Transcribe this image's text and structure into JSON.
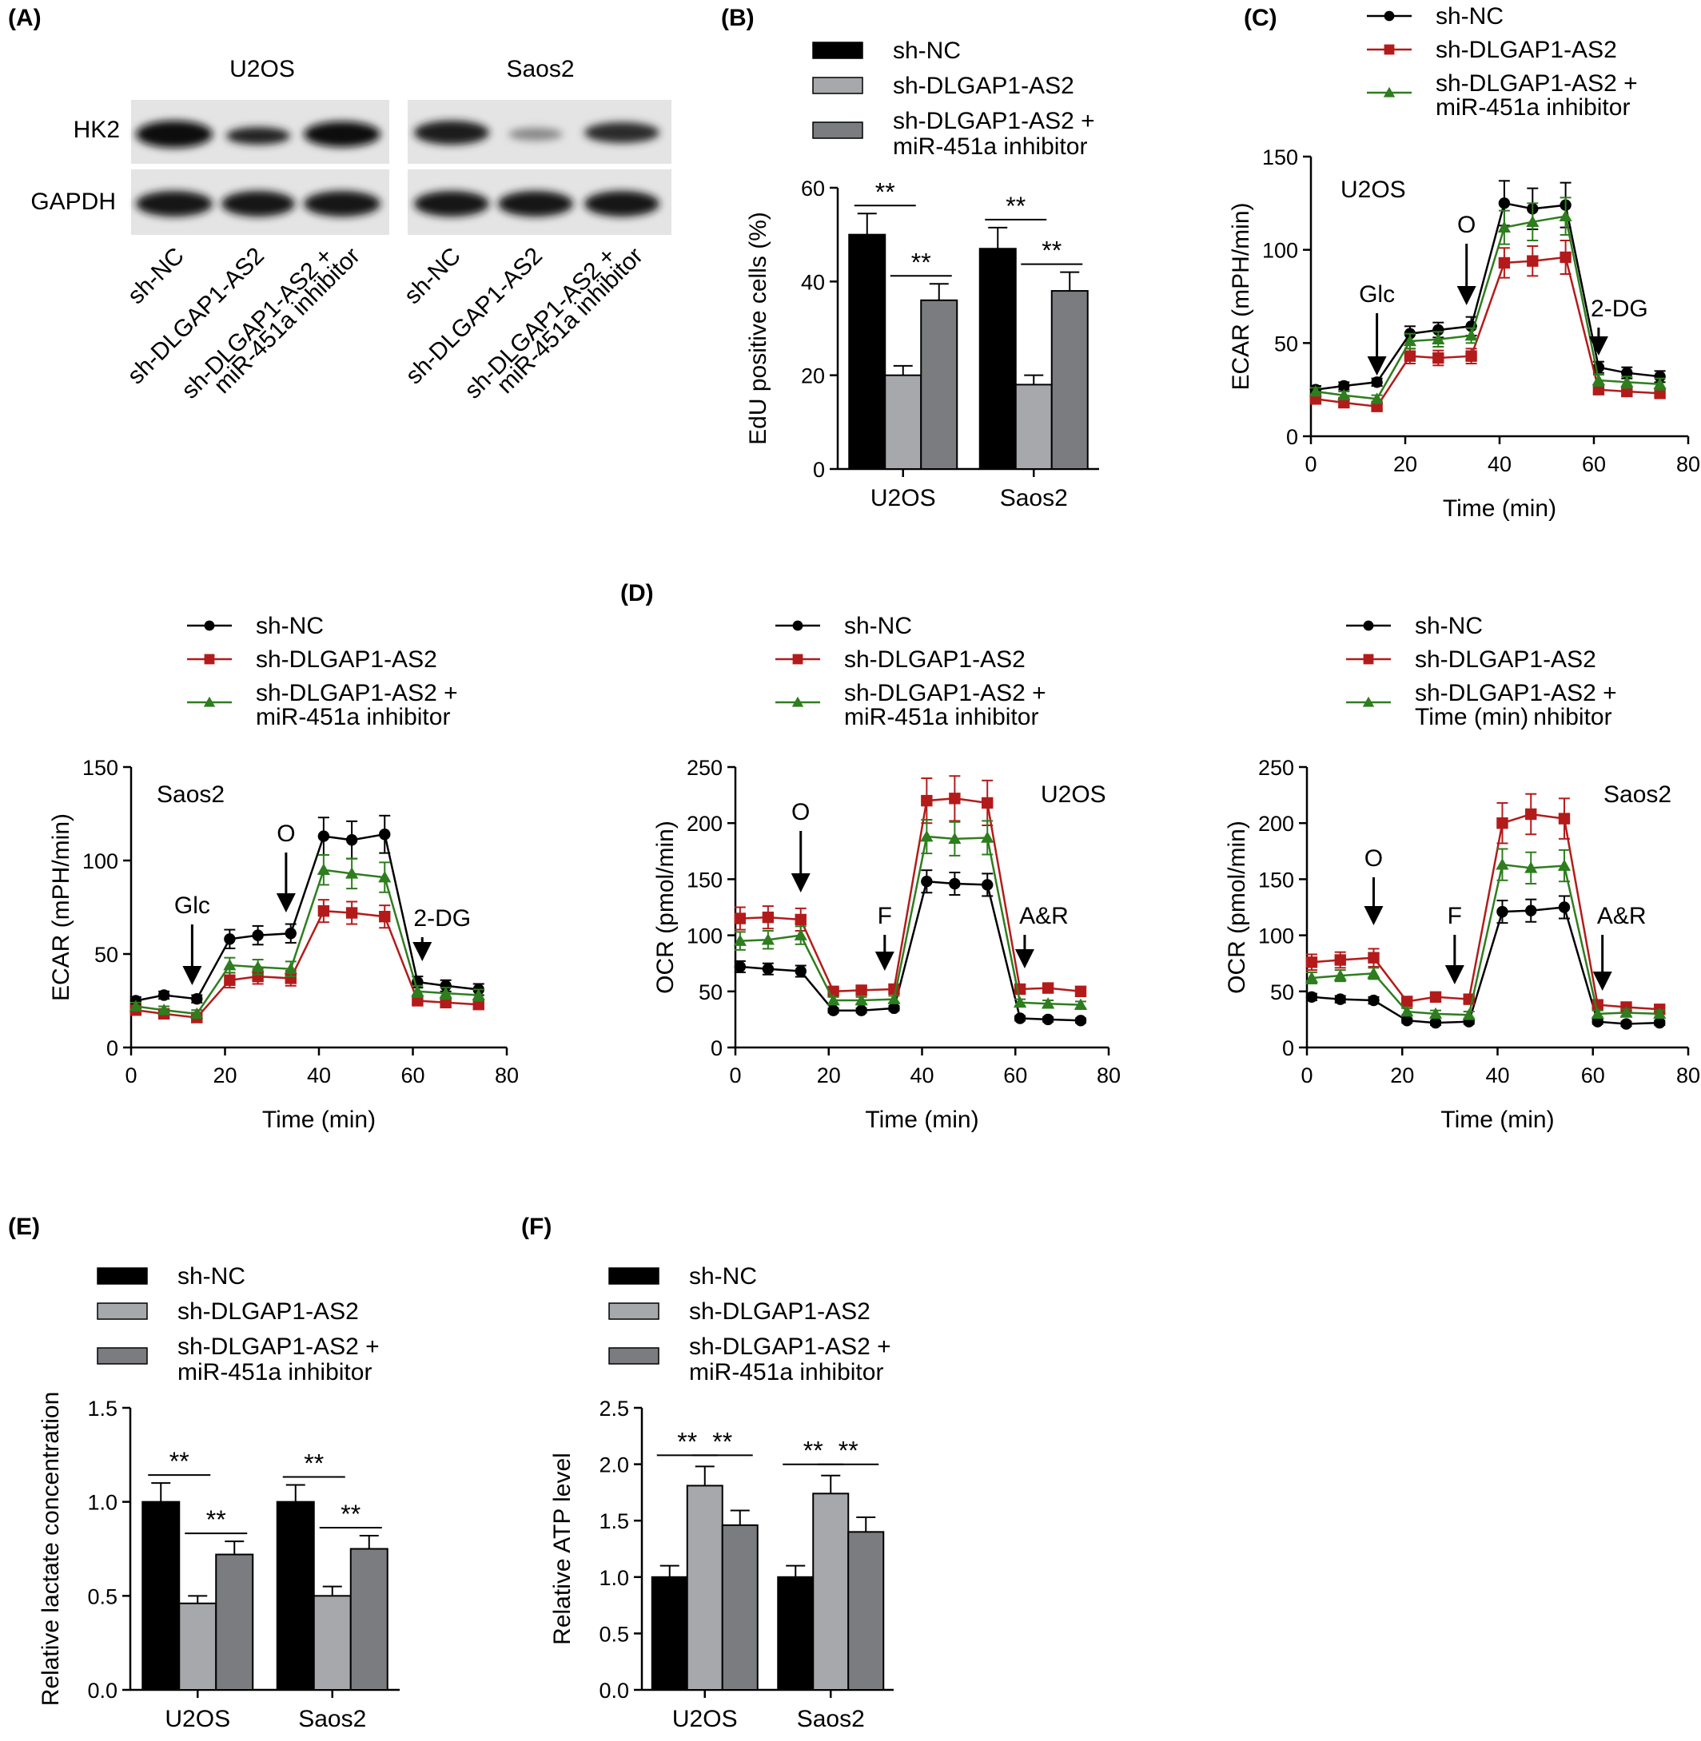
{
  "colors": {
    "black": "#000000",
    "red": "#b31b1b",
    "green": "#2e7d1e",
    "gray_light": "#a7a8ab",
    "gray_dark": "#7b7c7f",
    "blot_bg": "#e6e6e6"
  },
  "legend_labels": {
    "nc": "sh-NC",
    "kd": "sh-DLGAP1-AS2",
    "rescue_1": "sh-DLGAP1-AS2 +",
    "rescue_2": "miR-451a inhibitor",
    "rescue_2_saos_ocr": "Time (min) nhibitor"
  },
  "blot": {
    "panel_label": "(A)",
    "cell_lines": [
      "U2OS",
      "Saos2"
    ],
    "proteins": [
      "HK2",
      "GAPDH"
    ],
    "lanes": [
      "sh-NC",
      "sh-DLGAP1-AS2",
      "sh-DLGAP1-AS2 +",
      "miR-451a inhibitor"
    ]
  },
  "markers": {
    "glc": "Glc",
    "oligo": "O",
    "twodg": "2-DG",
    "fccp": "F",
    "ar": "A&R",
    "sig": "**"
  },
  "chart_data": [
    {
      "id": "B",
      "panel_label": "(B)",
      "type": "bar",
      "categories": [
        "U2OS",
        "Saos2"
      ],
      "series": [
        {
          "name": "sh-NC",
          "values": [
            50,
            47
          ],
          "errors": [
            4.5,
            4.5
          ]
        },
        {
          "name": "sh-DLGAP1-AS2",
          "values": [
            20,
            18
          ],
          "errors": [
            2,
            2
          ]
        },
        {
          "name": "sh-DLGAP1-AS2 + miR-451a inhibitor",
          "values": [
            36,
            38
          ],
          "errors": [
            3.5,
            4
          ]
        }
      ],
      "ylabel": "EdU positive cells (%)",
      "ylim": [
        0,
        60
      ],
      "yticks": [
        "0",
        "20",
        "40",
        "60"
      ]
    },
    {
      "id": "C",
      "panel_label": "(C)",
      "type": "line",
      "annotation": "U2OS",
      "x": [
        1,
        7,
        14,
        21,
        27,
        34,
        41,
        47,
        54,
        61,
        67,
        74
      ],
      "series": [
        {
          "name": "sh-NC",
          "values": [
            25,
            27,
            29,
            55,
            57,
            59,
            125,
            122,
            124,
            37,
            34,
            32
          ],
          "errors": [
            2,
            2,
            2,
            4,
            4,
            5,
            12,
            11,
            12,
            3,
            3,
            3
          ]
        },
        {
          "name": "sh-DLGAP1-AS2",
          "values": [
            20,
            18,
            16,
            43,
            42,
            43,
            93,
            94,
            96,
            25,
            24,
            23
          ],
          "errors": [
            2,
            2,
            2,
            4,
            4,
            4,
            8,
            8,
            9,
            2,
            2,
            2
          ]
        },
        {
          "name": "sh-DLGAP1-AS2 + miR-451a inhibitor",
          "values": [
            24,
            22,
            20,
            51,
            52,
            54,
            112,
            115,
            118,
            30,
            29,
            28
          ],
          "errors": [
            2,
            2,
            2,
            4,
            4,
            4,
            9,
            10,
            10,
            3,
            3,
            3
          ]
        }
      ],
      "xlabel": "Time (min)",
      "ylabel": "ECAR (mPH/min)",
      "xlim": [
        0,
        80
      ],
      "ylim": [
        0,
        150
      ],
      "xticks": [
        "0",
        "20",
        "40",
        "60",
        "80"
      ],
      "yticks": [
        "0",
        "50",
        "100",
        "150"
      ]
    },
    {
      "id": "ECAR_Saos2",
      "type": "line",
      "annotation": "Saos2",
      "x": [
        1,
        7,
        14,
        21,
        27,
        34,
        41,
        47,
        54,
        61,
        67,
        74
      ],
      "series": [
        {
          "name": "sh-NC",
          "values": [
            25,
            28,
            26,
            58,
            60,
            61,
            113,
            111,
            114,
            35,
            33,
            31
          ],
          "errors": [
            2,
            2,
            2,
            5,
            5,
            5,
            10,
            10,
            10,
            3,
            3,
            3
          ]
        },
        {
          "name": "sh-DLGAP1-AS2",
          "values": [
            20,
            18,
            16,
            36,
            38,
            37,
            73,
            72,
            70,
            25,
            24,
            23
          ],
          "errors": [
            2,
            2,
            2,
            4,
            4,
            4,
            6,
            6,
            6,
            2,
            2,
            2
          ]
        },
        {
          "name": "sh-DLGAP1-AS2 + miR-451a inhibitor",
          "values": [
            22,
            20,
            18,
            44,
            43,
            42,
            95,
            93,
            91,
            30,
            29,
            28
          ],
          "errors": [
            2,
            2,
            2,
            4,
            4,
            4,
            8,
            8,
            8,
            3,
            3,
            3
          ]
        }
      ],
      "xlabel": "Time (min)",
      "ylabel": "ECAR (mPH/min)",
      "xlim": [
        0,
        80
      ],
      "ylim": [
        0,
        150
      ],
      "xticks": [
        "0",
        "20",
        "40",
        "60",
        "80"
      ],
      "yticks": [
        "0",
        "50",
        "100",
        "150"
      ]
    },
    {
      "id": "D_U2OS",
      "panel_label": "(D)",
      "type": "line",
      "annotation": "U2OS",
      "x": [
        1,
        7,
        14,
        21,
        27,
        34,
        41,
        47,
        54,
        61,
        67,
        74
      ],
      "series": [
        {
          "name": "sh-NC",
          "values": [
            72,
            70,
            68,
            33,
            33,
            35,
            148,
            146,
            145,
            26,
            25,
            24
          ],
          "errors": [
            5,
            5,
            5,
            2,
            2,
            2,
            10,
            10,
            10,
            2,
            2,
            2
          ]
        },
        {
          "name": "sh-DLGAP1-AS2",
          "values": [
            115,
            116,
            114,
            50,
            51,
            52,
            220,
            222,
            218,
            52,
            53,
            50
          ],
          "errors": [
            10,
            10,
            10,
            3,
            3,
            3,
            20,
            20,
            20,
            4,
            4,
            4
          ]
        },
        {
          "name": "sh-DLGAP1-AS2 + miR-451a inhibitor",
          "values": [
            95,
            96,
            100,
            42,
            42,
            43,
            188,
            186,
            187,
            40,
            39,
            38
          ],
          "errors": [
            8,
            8,
            8,
            3,
            3,
            3,
            15,
            15,
            15,
            3,
            3,
            3
          ]
        }
      ],
      "xlabel": "Time (min)",
      "ylabel": "OCR (pmol/min)",
      "xlim": [
        0,
        80
      ],
      "ylim": [
        0,
        250
      ],
      "xticks": [
        "0",
        "20",
        "40",
        "60",
        "80"
      ],
      "yticks": [
        "0",
        "50",
        "100",
        "150",
        "200",
        "250"
      ]
    },
    {
      "id": "D_Saos2",
      "type": "line",
      "annotation": "Saos2",
      "x": [
        1,
        7,
        14,
        21,
        27,
        34,
        41,
        47,
        54,
        61,
        67,
        74
      ],
      "series": [
        {
          "name": "sh-NC",
          "values": [
            45,
            43,
            42,
            24,
            22,
            23,
            121,
            122,
            125,
            23,
            21,
            22
          ],
          "errors": [
            3,
            3,
            3,
            2,
            2,
            2,
            10,
            10,
            10,
            2,
            2,
            2
          ]
        },
        {
          "name": "sh-DLGAP1-AS2",
          "values": [
            76,
            78,
            80,
            41,
            45,
            43,
            200,
            208,
            204,
            38,
            36,
            34
          ],
          "errors": [
            7,
            7,
            8,
            3,
            3,
            3,
            18,
            18,
            18,
            3,
            3,
            3
          ]
        },
        {
          "name": "sh-DLGAP1-AS2 + miR-451a inhibitor",
          "values": [
            62,
            64,
            66,
            32,
            30,
            29,
            163,
            160,
            162,
            30,
            31,
            30
          ],
          "errors": [
            5,
            5,
            5,
            3,
            3,
            3,
            14,
            14,
            14,
            3,
            3,
            3
          ]
        }
      ],
      "xlabel": "Time (min)",
      "ylabel": "OCR (pmol/min)",
      "xlim": [
        0,
        80
      ],
      "ylim": [
        0,
        250
      ],
      "xticks": [
        "0",
        "20",
        "40",
        "60",
        "80"
      ],
      "yticks": [
        "0",
        "50",
        "100",
        "150",
        "200",
        "250"
      ]
    },
    {
      "id": "E",
      "panel_label": "(E)",
      "type": "bar",
      "categories": [
        "U2OS",
        "Saos2"
      ],
      "series": [
        {
          "name": "sh-NC",
          "values": [
            1.0,
            1.0
          ],
          "errors": [
            0.1,
            0.09
          ]
        },
        {
          "name": "sh-DLGAP1-AS2",
          "values": [
            0.46,
            0.5
          ],
          "errors": [
            0.04,
            0.05
          ]
        },
        {
          "name": "sh-DLGAP1-AS2 + miR-451a inhibitor",
          "values": [
            0.72,
            0.75
          ],
          "errors": [
            0.07,
            0.07
          ]
        }
      ],
      "ylabel": "Relative lactate concentration",
      "ylim": [
        0,
        1.5
      ],
      "yticks": [
        "0.0",
        "0.5",
        "1.0",
        "1.5"
      ]
    },
    {
      "id": "F",
      "panel_label": "(F)",
      "type": "bar",
      "categories": [
        "U2OS",
        "Saos2"
      ],
      "series": [
        {
          "name": "sh-NC",
          "values": [
            1.0,
            1.0
          ],
          "errors": [
            0.1,
            0.1
          ]
        },
        {
          "name": "sh-DLGAP1-AS2",
          "values": [
            1.81,
            1.74
          ],
          "errors": [
            0.17,
            0.16
          ]
        },
        {
          "name": "sh-DLGAP1-AS2 + miR-451a inhibitor",
          "values": [
            1.46,
            1.4
          ],
          "errors": [
            0.13,
            0.13
          ]
        }
      ],
      "ylabel": "Relative ATP level",
      "ylim": [
        0,
        2.5
      ],
      "yticks": [
        "0.0",
        "0.5",
        "1.0",
        "1.5",
        "2.0",
        "2.5"
      ]
    }
  ]
}
